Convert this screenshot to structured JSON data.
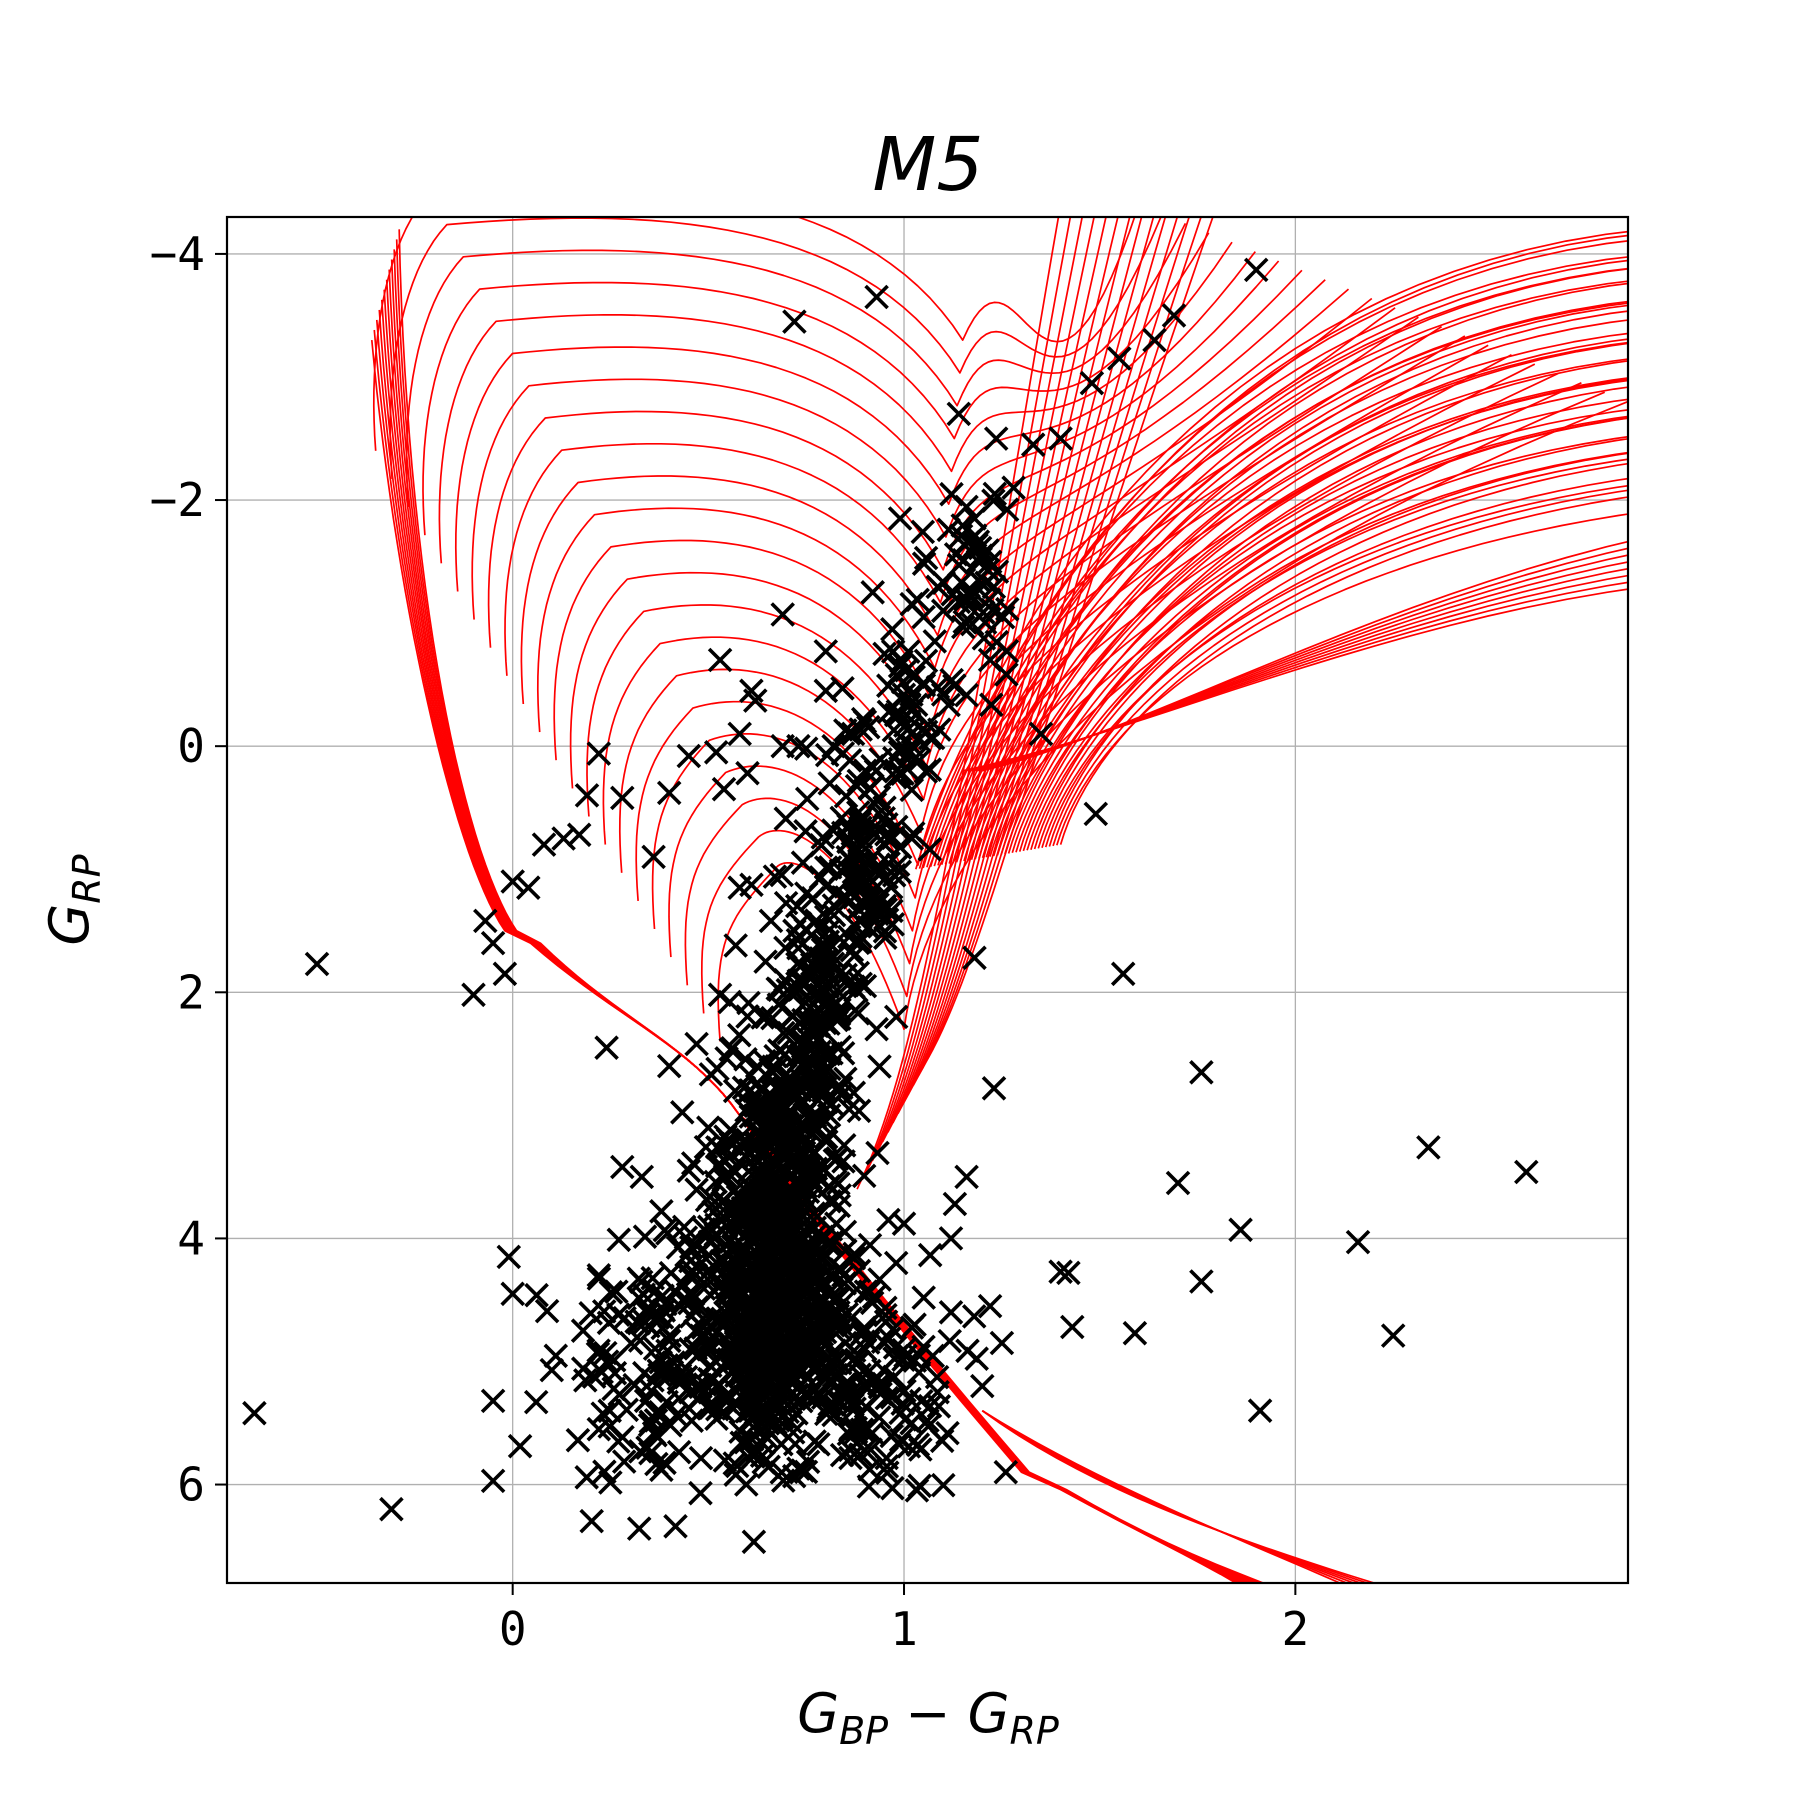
{
  "chart_data": {
    "type": "scatter",
    "title": "M5",
    "xlabel": "G_BP − G_RP",
    "xlabel_main": "G",
    "xlabel_sub1": "BP",
    "xlabel_minus": " − G",
    "xlabel_sub2": "RP",
    "ylabel": "G_RP",
    "ylabel_main": "G",
    "ylabel_sub": "RP",
    "xlim": [
      -0.73,
      2.85
    ],
    "ylim": [
      6.8,
      -4.3
    ],
    "y_inverted": true,
    "grid": true,
    "x_ticks": [
      0,
      1,
      2
    ],
    "x_tick_labels": [
      "0",
      "1",
      "2"
    ],
    "y_ticks": [
      -4,
      -2,
      0,
      2,
      4,
      6
    ],
    "y_tick_labels": [
      "−4",
      "−2",
      "0",
      "2",
      "4",
      "6"
    ],
    "scatter_color": "#000000",
    "scatter_marker": "x",
    "isochrone_color": "#ff0000",
    "outliers": [
      [
        -0.66,
        5.42
      ],
      [
        -0.5,
        1.77
      ],
      [
        -0.31,
        6.2
      ],
      [
        -0.1,
        2.02
      ],
      [
        -0.05,
        5.97
      ],
      [
        -0.05,
        5.32
      ],
      [
        -0.01,
        4.15
      ],
      [
        0.0,
        4.45
      ],
      [
        0.72,
        -3.45
      ],
      [
        0.93,
        -3.65
      ],
      [
        1.9,
        -3.87
      ],
      [
        1.49,
        0.55
      ],
      [
        1.56,
        1.85
      ],
      [
        1.76,
        2.65
      ],
      [
        1.23,
        2.78
      ],
      [
        2.34,
        3.26
      ],
      [
        2.59,
        3.46
      ],
      [
        1.7,
        3.55
      ],
      [
        1.86,
        3.93
      ],
      [
        2.16,
        4.03
      ],
      [
        1.76,
        4.35
      ],
      [
        1.42,
        4.28
      ],
      [
        1.4,
        4.27
      ],
      [
        1.43,
        4.72
      ],
      [
        1.59,
        4.77
      ],
      [
        2.25,
        4.79
      ],
      [
        1.91,
        5.4
      ],
      [
        1.26,
        5.9
      ],
      [
        1.04,
        6.01
      ],
      [
        0.48,
        6.07
      ],
      [
        0.24,
        2.45
      ],
      [
        1.18,
        1.72
      ],
      [
        0.8,
        -0.77
      ],
      [
        0.67,
        1.06
      ]
    ],
    "cluster_points": [
      [
        0.99,
        -1.85
      ],
      [
        0.92,
        -1.25
      ],
      [
        1.1,
        -1.1
      ],
      [
        1.05,
        -1.05
      ],
      [
        0.97,
        -0.95
      ],
      [
        0.95,
        -0.75
      ],
      [
        0.99,
        -0.65
      ],
      [
        1.1,
        -0.42
      ],
      [
        0.69,
        -1.07
      ],
      [
        0.8,
        -0.45
      ],
      [
        0.87,
        -0.1
      ],
      [
        1.35,
        -0.1
      ],
      [
        0.62,
        -0.37
      ],
      [
        0.53,
        -0.7
      ],
      [
        0.61,
        -0.45
      ],
      [
        0.58,
        -0.1
      ],
      [
        0.69,
        0.0
      ],
      [
        0.73,
        0.0
      ],
      [
        0.75,
        0.02
      ],
      [
        0.82,
        0.0
      ],
      [
        0.52,
        0.05
      ],
      [
        0.45,
        0.08
      ],
      [
        0.28,
        0.42
      ],
      [
        0.4,
        0.38
      ],
      [
        0.54,
        0.35
      ],
      [
        0.6,
        0.22
      ],
      [
        0.19,
        0.4
      ],
      [
        0.22,
        0.06
      ],
      [
        0.13,
        0.75
      ],
      [
        0.17,
        0.72
      ],
      [
        0.08,
        0.8
      ],
      [
        0.36,
        0.9
      ],
      [
        0.0,
        1.1
      ],
      [
        0.04,
        1.15
      ],
      [
        -0.07,
        1.42
      ],
      [
        -0.05,
        1.6
      ],
      [
        -0.02,
        1.85
      ],
      [
        0.58,
        1.15
      ],
      [
        0.57,
        1.62
      ],
      [
        0.53,
        2.02
      ],
      [
        0.47,
        2.42
      ],
      [
        0.4,
        2.6
      ],
      [
        0.28,
        3.42
      ],
      [
        0.33,
        3.5
      ],
      [
        0.38,
        3.78
      ],
      [
        0.22,
        4.3
      ],
      [
        0.27,
        4.62
      ],
      [
        0.18,
        4.75
      ],
      [
        0.1,
        5.07
      ],
      [
        0.06,
        5.33
      ],
      [
        0.22,
        5.55
      ],
      [
        0.27,
        5.65
      ],
      [
        0.38,
        5.88
      ],
      [
        0.57,
        5.92
      ],
      [
        0.73,
        5.87
      ],
      [
        0.9,
        5.72
      ],
      [
        1.06,
        5.48
      ],
      [
        1.2,
        5.2
      ],
      [
        1.25,
        4.85
      ],
      [
        1.22,
        4.55
      ],
      [
        1.12,
        4.6
      ],
      [
        1.12,
        4.0
      ],
      [
        1.13,
        3.72
      ],
      [
        1.16,
        3.5
      ],
      [
        1.0,
        3.88
      ],
      [
        0.96,
        3.85
      ],
      [
        0.98,
        4.2
      ],
      [
        0.85,
        4.1
      ],
      [
        0.83,
        3.35
      ],
      [
        0.86,
        2.95
      ],
      [
        0.8,
        2.5
      ],
      [
        0.76,
        2.12
      ],
      [
        0.78,
        1.72
      ],
      [
        0.72,
        1.5
      ],
      [
        0.66,
        1.42
      ],
      [
        0.68,
        2.1
      ],
      [
        0.93,
        2.3
      ],
      [
        1.22,
        -0.7
      ],
      [
        1.19,
        -1.35
      ],
      [
        1.18,
        -1.85
      ],
      [
        1.28,
        -2.1
      ],
      [
        1.4,
        -2.5
      ],
      [
        1.48,
        -2.95
      ],
      [
        1.55,
        -3.15
      ],
      [
        1.64,
        -3.3
      ],
      [
        1.69,
        -3.5
      ],
      [
        1.14,
        -2.7
      ],
      [
        1.33,
        -2.45
      ],
      [
        0.9,
        -0.2
      ],
      [
        0.95,
        0.5
      ],
      [
        1.02,
        0.75
      ],
      [
        0.92,
        1.1
      ],
      [
        0.86,
        1.55
      ],
      [
        0.9,
        1.95
      ],
      [
        0.98,
        2.2
      ],
      [
        0.74,
        2.72
      ],
      [
        0.62,
        2.92
      ],
      [
        0.55,
        3.2
      ],
      [
        0.45,
        3.45
      ],
      [
        0.5,
        3.1
      ],
      [
        0.7,
        3.3
      ],
      [
        0.8,
        3.05
      ],
      [
        0.65,
        4.4
      ],
      [
        0.5,
        4.9
      ],
      [
        0.85,
        4.85
      ]
    ],
    "dense_cores": [
      {
        "cx": 0.66,
        "cy": 4.5,
        "sx": 0.1,
        "sy": 0.6,
        "n": 700
      },
      {
        "cx": 0.68,
        "cy": 3.2,
        "sx": 0.07,
        "sy": 0.45,
        "n": 240
      },
      {
        "cx": 0.78,
        "cy": 2.0,
        "sx": 0.06,
        "sy": 0.5,
        "n": 150
      },
      {
        "cx": 0.9,
        "cy": 0.85,
        "sx": 0.045,
        "sy": 0.45,
        "n": 110
      },
      {
        "cx": 1.02,
        "cy": -0.2,
        "sx": 0.04,
        "sy": 0.4,
        "n": 55
      },
      {
        "cx": 1.18,
        "cy": -1.5,
        "sx": 0.05,
        "sy": 0.4,
        "n": 60
      },
      {
        "cx": 0.38,
        "cy": 5.05,
        "sx": 0.12,
        "sy": 0.5,
        "n": 140
      },
      {
        "cx": 0.9,
        "cy": 5.1,
        "sx": 0.1,
        "sy": 0.45,
        "n": 130
      }
    ],
    "isochrone_families": {
      "blue_loops": 22,
      "main_sequence_tracks": 12,
      "giant_branch_tracks": 40
    }
  }
}
